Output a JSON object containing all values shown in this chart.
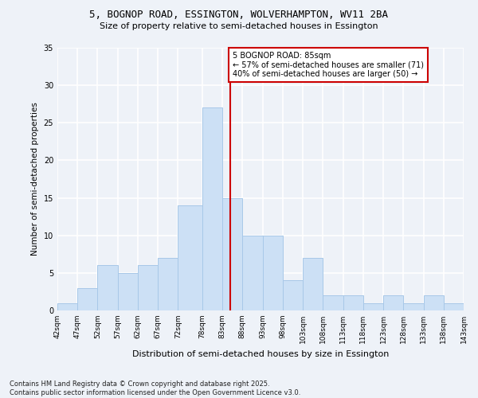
{
  "title_line1": "5, BOGNOP ROAD, ESSINGTON, WOLVERHAMPTON, WV11 2BA",
  "title_line2": "Size of property relative to semi-detached houses in Essington",
  "xlabel": "Distribution of semi-detached houses by size in Essington",
  "ylabel": "Number of semi-detached properties",
  "footnote": "Contains HM Land Registry data © Crown copyright and database right 2025.\nContains public sector information licensed under the Open Government Licence v3.0.",
  "bins": [
    42,
    47,
    52,
    57,
    62,
    67,
    72,
    78,
    83,
    88,
    93,
    98,
    103,
    108,
    113,
    118,
    123,
    128,
    133,
    138,
    143
  ],
  "counts": [
    1,
    3,
    6,
    5,
    6,
    7,
    14,
    27,
    15,
    10,
    10,
    4,
    7,
    2,
    2,
    1,
    2,
    1,
    2,
    1
  ],
  "property_size": 85,
  "vline_x": 85,
  "annotation_title": "5 BOGNOP ROAD: 85sqm",
  "annotation_line2": "← 57% of semi-detached houses are smaller (71)",
  "annotation_line3": "40% of semi-detached houses are larger (50) →",
  "bar_color": "#cce0f5",
  "bar_edgecolor": "#a8c8e8",
  "vline_color": "#cc0000",
  "background_color": "#eef2f8",
  "grid_color": "#ffffff",
  "ylim": [
    0,
    35
  ],
  "yticks": [
    0,
    5,
    10,
    15,
    20,
    25,
    30,
    35
  ],
  "title_fontsize": 9,
  "subtitle_fontsize": 8,
  "ylabel_fontsize": 7.5,
  "xlabel_fontsize": 8,
  "tick_fontsize": 6.5,
  "footnote_fontsize": 6,
  "annot_fontsize": 7
}
